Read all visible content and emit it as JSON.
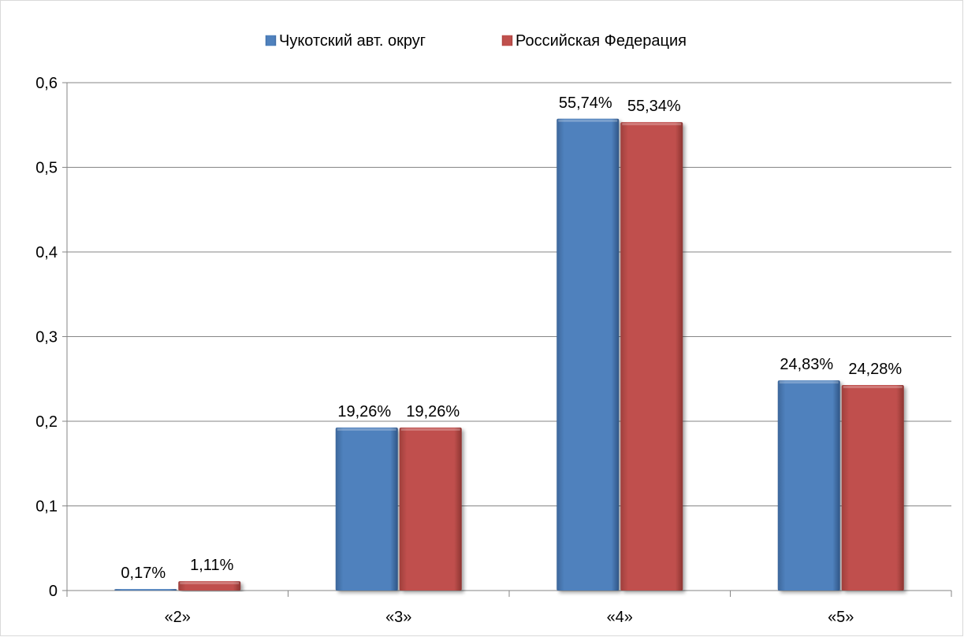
{
  "chart_data": {
    "type": "bar",
    "categories": [
      "«2»",
      "«3»",
      "«4»",
      "«5»"
    ],
    "series": [
      {
        "name": "Чукотский авт. округ",
        "values": [
          0.0017,
          0.1926,
          0.5574,
          0.2483
        ],
        "labels": [
          "0,17%",
          "19,26%",
          "55,74%",
          "24,83%"
        ],
        "color": "#4f81bd"
      },
      {
        "name": "Российская Федерация",
        "values": [
          0.0111,
          0.1926,
          0.5534,
          0.2428
        ],
        "labels": [
          "1,11%",
          "19,26%",
          "55,34%",
          "24,28%"
        ],
        "color": "#c0504d"
      }
    ],
    "ylim": [
      0,
      0.6
    ],
    "yticks": [
      0,
      0.1,
      0.2,
      0.3,
      0.4,
      0.5,
      0.6
    ],
    "ytick_labels": [
      "0",
      "0,1",
      "0,2",
      "0,3",
      "0,4",
      "0,5",
      "0,6"
    ],
    "grid": true,
    "legend_position": "top-center",
    "title": "",
    "xlabel": "",
    "ylabel": ""
  }
}
